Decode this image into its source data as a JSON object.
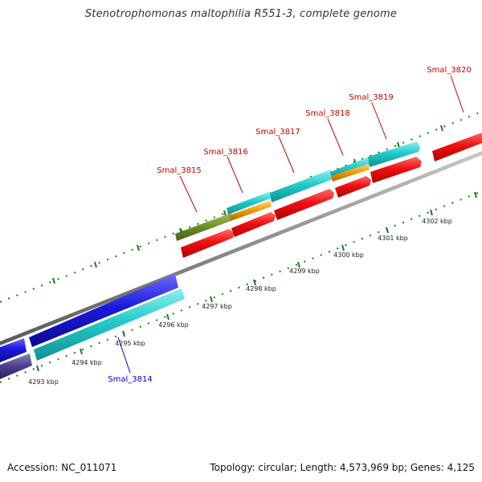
{
  "title": "Stenotrophomonas maltophilia R551-3, complete genome",
  "footer": {
    "accession": "Accession: NC_011071",
    "summary": "Topology: circular; Length: 4,573,969 bp; Genes: 4,125"
  },
  "colors": {
    "forward_gene_label": "#cc0000",
    "reverse_gene_label": "#0000cc",
    "red_gene": "#ee1111",
    "cyan_gene": "#22cccc",
    "orange_gene": "#ee9900",
    "olive_gene": "#6b8e23",
    "blue_gene": "#1a1adc",
    "navy_gene": "#4a3f8c",
    "tick": "#1a7a1a",
    "axis": "#8a8a8a"
  },
  "kbp_labels": [
    "4293 kbp",
    "4294 kbp",
    "4295 kbp",
    "4296 kbp",
    "4297 kbp",
    "4298 kbp",
    "4299 kbp",
    "4300 kbp",
    "4301 kbp",
    "4302 kbp"
  ],
  "gene_labels": [
    {
      "text": "Smal_3815",
      "strand": "forward"
    },
    {
      "text": "Smal_3816",
      "strand": "forward"
    },
    {
      "text": "Smal_3817",
      "strand": "forward"
    },
    {
      "text": "Smal_3818",
      "strand": "forward"
    },
    {
      "text": "Smal_3819",
      "strand": "forward"
    },
    {
      "text": "Smal_3820",
      "strand": "forward"
    },
    {
      "text": "Smal_3814",
      "strand": "reverse"
    }
  ]
}
